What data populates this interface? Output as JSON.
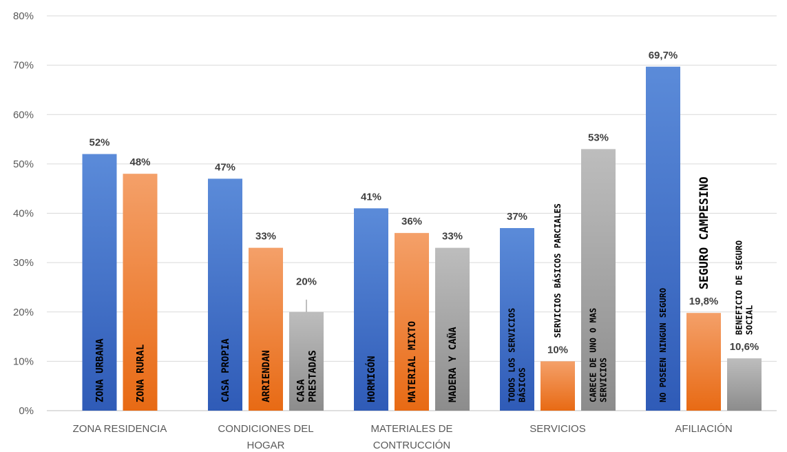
{
  "chart_data": {
    "type": "bar",
    "ylim": [
      0,
      80
    ],
    "y_ticks": [
      "0%",
      "10%",
      "20%",
      "30%",
      "40%",
      "50%",
      "60%",
      "70%",
      "80%"
    ],
    "grid": true,
    "colors": {
      "blue": "#4472C4",
      "orange": "#ED7D31",
      "gray": "#A5A5A5"
    },
    "groups": [
      {
        "category": [
          "ZONA RESIDENCIA"
        ],
        "bars": [
          {
            "value": 52,
            "color": "blue",
            "data_label": "52%",
            "bar_label": [
              "ZONA URBANA"
            ]
          },
          {
            "value": 48,
            "color": "orange",
            "data_label": "48%",
            "bar_label": [
              "ZONA RURAL"
            ]
          }
        ]
      },
      {
        "category": [
          "CONDICIONES DEL",
          "HOGAR"
        ],
        "bars": [
          {
            "value": 47,
            "color": "blue",
            "data_label": "47%",
            "bar_label": [
              "CASA PROPIA"
            ]
          },
          {
            "value": 33,
            "color": "orange",
            "data_label": "33%",
            "bar_label": [
              "ARRIENDAN"
            ]
          },
          {
            "value": 20,
            "color": "gray",
            "data_label": "20%",
            "bar_label": [
              "CASA",
              "PRESTADAS"
            ]
          }
        ]
      },
      {
        "category": [
          "MATERIALES DE",
          "CONTRUCCIÓN"
        ],
        "bars": [
          {
            "value": 41,
            "color": "blue",
            "data_label": "41%",
            "bar_label": [
              "HORMIGÓN"
            ]
          },
          {
            "value": 36,
            "color": "orange",
            "data_label": "36%",
            "bar_label": [
              "MATERIAL MIXTO"
            ]
          },
          {
            "value": 33,
            "color": "gray",
            "data_label": "33%",
            "bar_label": [
              "MADERA Y CAÑA"
            ]
          }
        ]
      },
      {
        "category": [
          "SERVICIOS"
        ],
        "bars": [
          {
            "value": 37,
            "color": "blue",
            "data_label": "37%",
            "bar_label": [
              "TODOS LOS SERVICIOS",
              "BÁSICOS"
            ]
          },
          {
            "value": 10,
            "color": "orange",
            "data_label": "10%",
            "bar_label": [
              "SERVICIOS BÁSICOS PARCIALES"
            ]
          },
          {
            "value": 53,
            "color": "gray",
            "data_label": "53%",
            "bar_label": [
              "CARECE DE UNO O MAS",
              "SERVICIOS"
            ]
          }
        ]
      },
      {
        "category": [
          "AFILIACIÓN"
        ],
        "bars": [
          {
            "value": 69.7,
            "color": "blue",
            "data_label": "69,7%",
            "bar_label": [
              "NO POSEEN NINGUN SEGURO"
            ]
          },
          {
            "value": 19.8,
            "color": "orange",
            "data_label": "19,8%",
            "bar_label": [
              "SEGURO CAMPESINO"
            ]
          },
          {
            "value": 10.6,
            "color": "gray",
            "data_label": "10,6%",
            "bar_label": [
              "BENEFICIO DE SEGURO",
              "SOCIAL"
            ]
          }
        ]
      }
    ]
  }
}
